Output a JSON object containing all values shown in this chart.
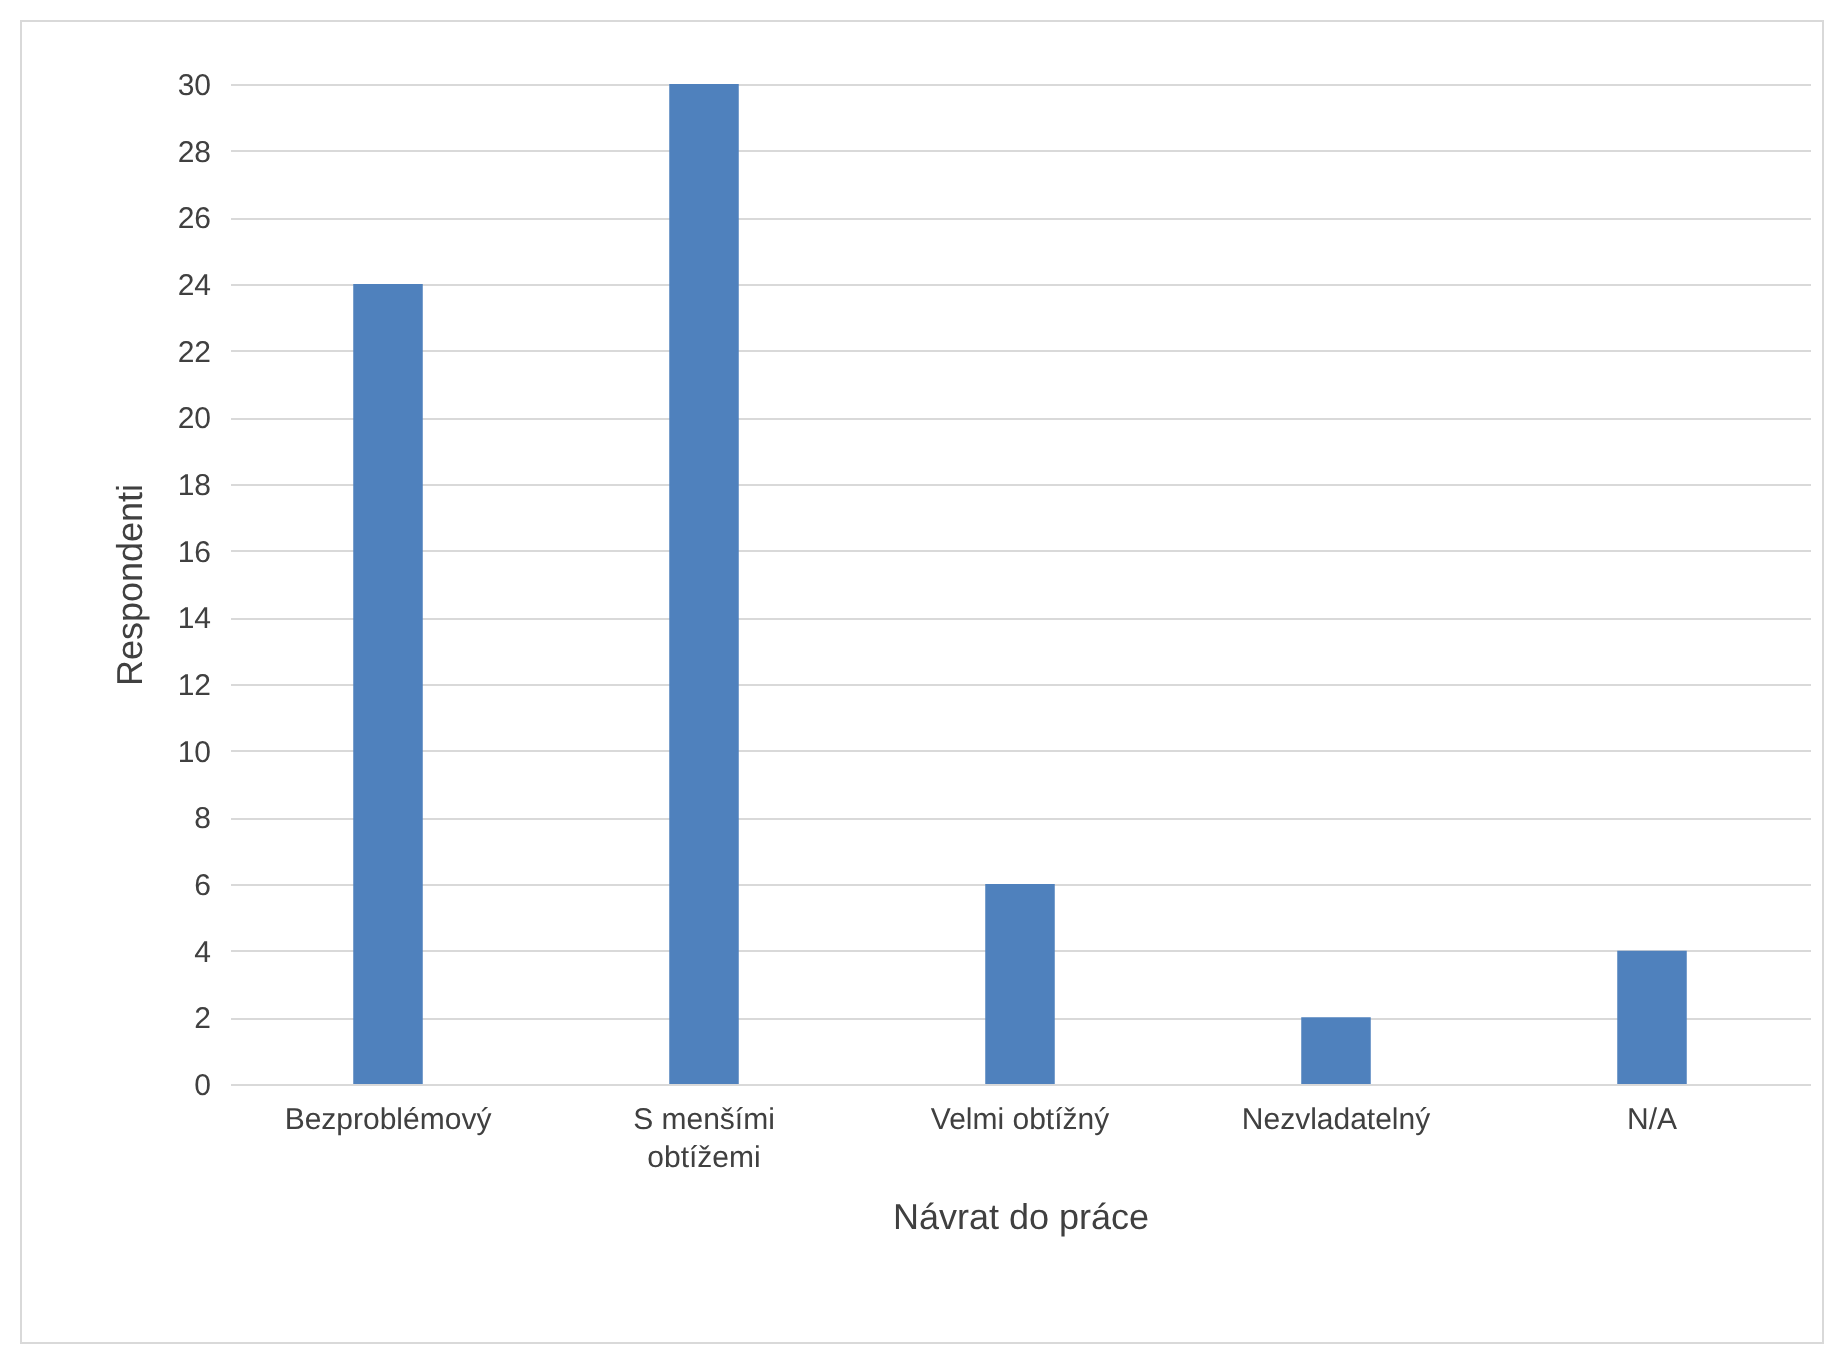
{
  "chart_data": {
    "type": "bar",
    "xlabel": "Návrat do práce",
    "ylabel": "Respondenti",
    "categories": [
      "Bezproblémový",
      "S menšími obtížemi",
      "Velmi obtížný",
      "Nezvladatelný",
      "N/A"
    ],
    "values": [
      24,
      30,
      6,
      2,
      4
    ],
    "color": "#4f81bd",
    "ylim": [
      0,
      30
    ],
    "yticks": [
      0,
      2,
      4,
      6,
      8,
      10,
      12,
      14,
      16,
      18,
      20,
      22,
      24,
      26,
      28,
      30
    ],
    "grid": "y"
  }
}
